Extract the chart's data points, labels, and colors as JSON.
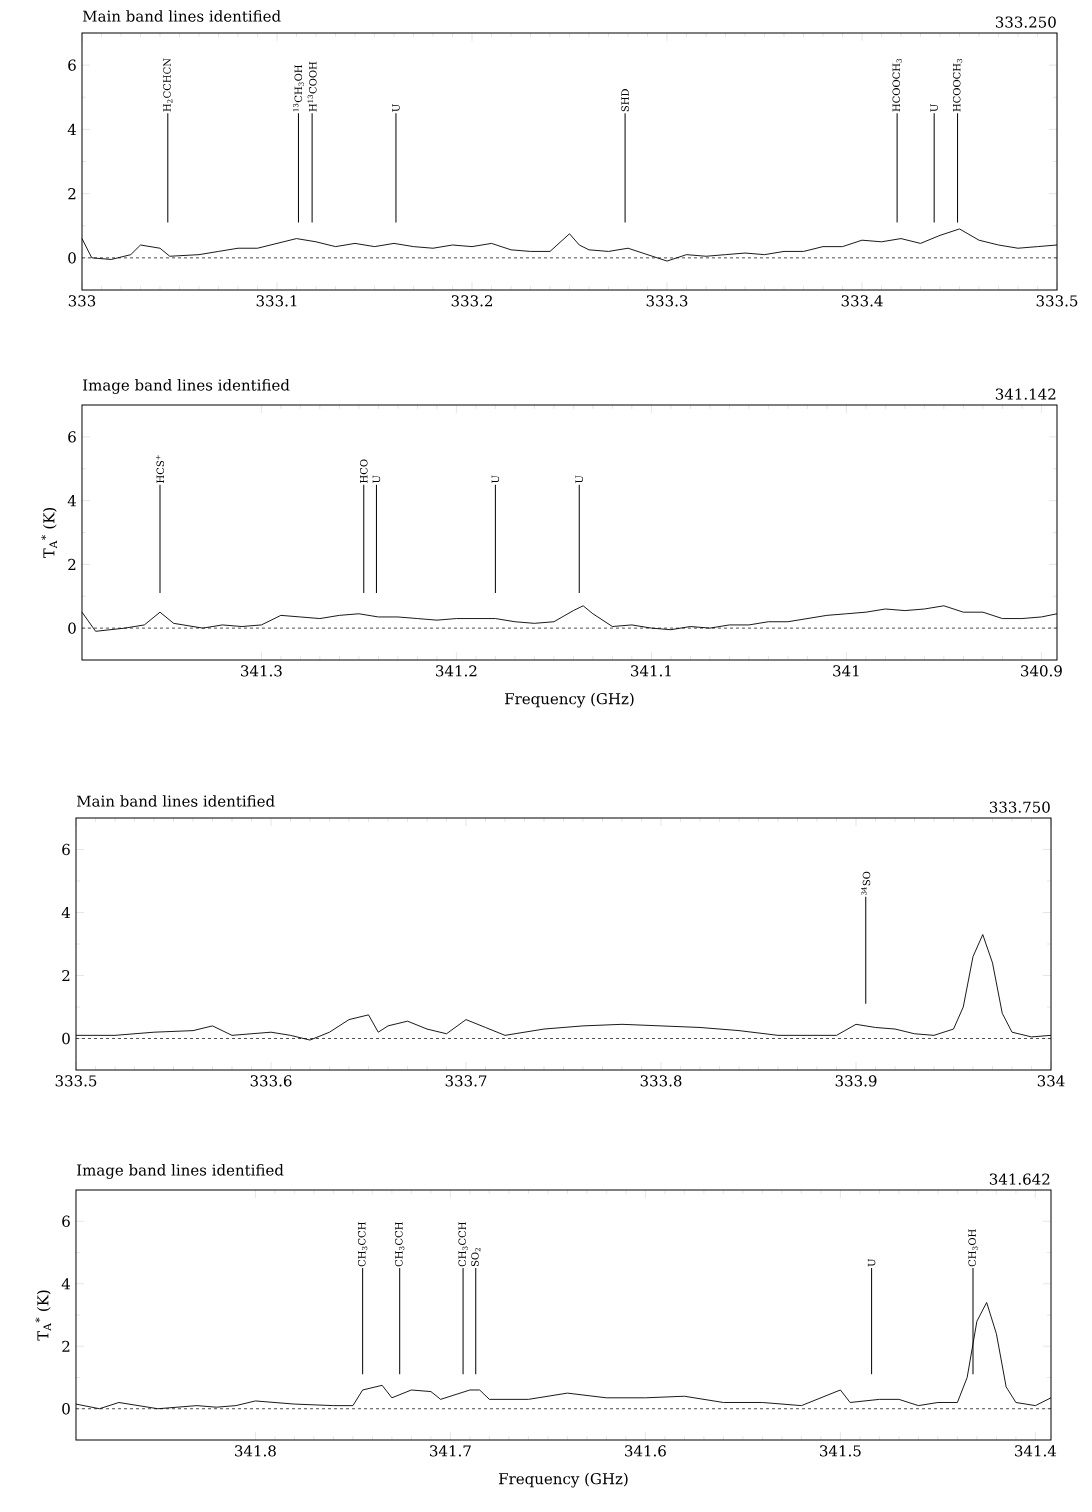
{
  "chart_data": [
    {
      "type": "line",
      "title": "Main band lines identified",
      "annotations": [
        "333.250"
      ],
      "xlim": [
        333,
        333.5
      ],
      "xticks": [
        333,
        333.1,
        333.2,
        333.3,
        333.4,
        333.5
      ],
      "ylim": [
        -1,
        7
      ],
      "yticks": [
        0,
        2,
        4,
        6
      ],
      "ref_lines": [
        {
          "axis": "y",
          "value": 0,
          "line_style": "dashed"
        },
        {
          "axis": "x",
          "value": 333.044,
          "label": "H$_{2}$CCHCN"
        },
        {
          "axis": "x",
          "value": 333.111,
          "label": "$^{13}$CH$_{3}$OH"
        },
        {
          "axis": "x",
          "value": 333.118,
          "label": "H$^{13}$COOH"
        },
        {
          "axis": "x",
          "value": 333.161,
          "label": "U"
        },
        {
          "axis": "x",
          "value": 333.2785,
          "label": "SHD"
        },
        {
          "axis": "x",
          "value": 333.418,
          "label": "HCOOCH$_{3}$"
        },
        {
          "axis": "x",
          "value": 333.437,
          "label": "U"
        },
        {
          "axis": "x",
          "value": 333.449,
          "label": "HCOOCH$_{3}$"
        }
      ],
      "x": [
        333.0,
        333.005,
        333.015,
        333.025,
        333.03,
        333.04,
        333.045,
        333.06,
        333.07,
        333.08,
        333.09,
        333.1,
        333.11,
        333.12,
        333.13,
        333.14,
        333.15,
        333.16,
        333.17,
        333.18,
        333.19,
        333.2,
        333.21,
        333.22,
        333.23,
        333.24,
        333.25,
        333.255,
        333.26,
        333.27,
        333.28,
        333.29,
        333.3,
        333.31,
        333.32,
        333.33,
        333.34,
        333.35,
        333.36,
        333.37,
        333.38,
        333.39,
        333.4,
        333.41,
        333.42,
        333.43,
        333.44,
        333.45,
        333.46,
        333.47,
        333.48,
        333.49,
        333.5
      ],
      "series": [
        {
          "color": "#000000",
          "values": [
            0.6,
            0.0,
            -0.05,
            0.1,
            0.4,
            0.3,
            0.05,
            0.1,
            0.2,
            0.3,
            0.3,
            0.45,
            0.6,
            0.5,
            0.35,
            0.45,
            0.35,
            0.45,
            0.35,
            0.3,
            0.4,
            0.35,
            0.45,
            0.25,
            0.2,
            0.2,
            0.75,
            0.4,
            0.25,
            0.2,
            0.3,
            0.1,
            -0.1,
            0.1,
            0.05,
            0.1,
            0.15,
            0.1,
            0.2,
            0.2,
            0.35,
            0.35,
            0.55,
            0.5,
            0.6,
            0.45,
            0.7,
            0.9,
            0.55,
            0.4,
            0.3,
            0.35,
            0.4
          ]
        }
      ]
    },
    {
      "type": "line",
      "title": "Image band lines identified",
      "xlabel": "Frequency (GHz)",
      "ylabel": "T$_{A}$$^{*}$ (K)",
      "annotations": [
        "341.142"
      ],
      "xlim": [
        341.392,
        340.892
      ],
      "xticks": [
        341.3,
        341.2,
        341.1,
        341,
        340.9
      ],
      "ylim": [
        -1,
        7
      ],
      "yticks": [
        0,
        2,
        4,
        6
      ],
      "ref_lines": [
        {
          "axis": "y",
          "value": 0,
          "line_style": "dashed"
        },
        {
          "axis": "x",
          "value": 341.352,
          "label": "HCS$^{+}$"
        },
        {
          "axis": "x",
          "value": 341.2475,
          "label": "HCO"
        },
        {
          "axis": "x",
          "value": 341.241,
          "label": "U"
        },
        {
          "axis": "x",
          "value": 341.18,
          "label": "U"
        },
        {
          "axis": "x",
          "value": 341.137,
          "label": "U"
        }
      ],
      "x": [
        341.392,
        341.385,
        341.37,
        341.36,
        341.352,
        341.345,
        341.33,
        341.32,
        341.31,
        341.3,
        341.29,
        341.28,
        341.27,
        341.26,
        341.25,
        341.24,
        341.23,
        341.22,
        341.21,
        341.2,
        341.19,
        341.18,
        341.17,
        341.16,
        341.15,
        341.14,
        341.135,
        341.13,
        341.12,
        341.11,
        341.1,
        341.09,
        341.08,
        341.07,
        341.06,
        341.05,
        341.04,
        341.03,
        341.02,
        341.01,
        341.0,
        340.99,
        340.98,
        340.97,
        340.96,
        340.95,
        340.94,
        340.93,
        340.92,
        340.91,
        340.9,
        340.892
      ],
      "series": [
        {
          "color": "#000000",
          "values": [
            0.5,
            -0.1,
            0.0,
            0.1,
            0.5,
            0.15,
            0.0,
            0.1,
            0.05,
            0.1,
            0.4,
            0.35,
            0.3,
            0.4,
            0.45,
            0.35,
            0.35,
            0.3,
            0.25,
            0.3,
            0.3,
            0.3,
            0.2,
            0.15,
            0.2,
            0.55,
            0.7,
            0.45,
            0.05,
            0.1,
            0.0,
            -0.05,
            0.05,
            0.0,
            0.1,
            0.1,
            0.2,
            0.2,
            0.3,
            0.4,
            0.45,
            0.5,
            0.6,
            0.55,
            0.6,
            0.7,
            0.5,
            0.5,
            0.3,
            0.3,
            0.35,
            0.45
          ]
        }
      ]
    },
    {
      "type": "line",
      "title": "Main band lines identified",
      "annotations": [
        "333.750"
      ],
      "xlim": [
        333.5,
        334
      ],
      "xticks": [
        333.5,
        333.6,
        333.7,
        333.8,
        333.9,
        334
      ],
      "ylim": [
        -1,
        7
      ],
      "yticks": [
        0,
        2,
        4,
        6
      ],
      "ref_lines": [
        {
          "axis": "y",
          "value": 0,
          "line_style": "dashed"
        },
        {
          "axis": "x",
          "value": 333.905,
          "label": "$^{34}$SO"
        }
      ],
      "x": [
        333.5,
        333.52,
        333.54,
        333.56,
        333.57,
        333.58,
        333.6,
        333.61,
        333.62,
        333.63,
        333.64,
        333.65,
        333.655,
        333.66,
        333.67,
        333.68,
        333.69,
        333.7,
        333.71,
        333.72,
        333.74,
        333.76,
        333.78,
        333.8,
        333.82,
        333.84,
        333.86,
        333.88,
        333.89,
        333.9,
        333.91,
        333.92,
        333.93,
        333.94,
        333.95,
        333.955,
        333.96,
        333.965,
        333.97,
        333.975,
        333.98,
        333.99,
        334.0
      ],
      "series": [
        {
          "color": "#000000",
          "values": [
            0.1,
            0.1,
            0.2,
            0.25,
            0.4,
            0.1,
            0.2,
            0.1,
            -0.05,
            0.2,
            0.6,
            0.75,
            0.2,
            0.4,
            0.55,
            0.3,
            0.15,
            0.6,
            0.35,
            0.1,
            0.3,
            0.4,
            0.45,
            0.4,
            0.35,
            0.25,
            0.1,
            0.1,
            0.1,
            0.45,
            0.35,
            0.3,
            0.15,
            0.1,
            0.3,
            1.0,
            2.6,
            3.3,
            2.4,
            0.8,
            0.2,
            0.05,
            0.1
          ]
        }
      ]
    },
    {
      "type": "line",
      "title": "Image band lines identified",
      "xlabel": "Frequency (GHz)",
      "ylabel": "T$_{A}$$^{*}$ (K)",
      "annotations": [
        "341.642"
      ],
      "xlim": [
        341.892,
        341.392
      ],
      "xticks": [
        341.8,
        341.7,
        341.6,
        341.5,
        341.4
      ],
      "ylim": [
        -1,
        7
      ],
      "yticks": [
        0,
        2,
        4,
        6
      ],
      "ref_lines": [
        {
          "axis": "y",
          "value": 0,
          "line_style": "dashed"
        },
        {
          "axis": "x",
          "value": 341.745,
          "label": "CH$_{3}$CCH"
        },
        {
          "axis": "x",
          "value": 341.726,
          "label": "CH$_{3}$CCH"
        },
        {
          "axis": "x",
          "value": 341.6935,
          "label": "CH$_{3}$CCH"
        },
        {
          "axis": "x",
          "value": 341.687,
          "label": "SO$_{2}$"
        },
        {
          "axis": "x",
          "value": 341.484,
          "label": "U"
        },
        {
          "axis": "x",
          "value": 341.432,
          "label": "CH$_{3}$OH"
        }
      ],
      "x": [
        341.892,
        341.88,
        341.87,
        341.86,
        341.85,
        341.83,
        341.82,
        341.81,
        341.8,
        341.78,
        341.76,
        341.75,
        341.745,
        341.735,
        341.73,
        341.72,
        341.71,
        341.705,
        341.69,
        341.685,
        341.68,
        341.66,
        341.64,
        341.62,
        341.6,
        341.58,
        341.56,
        341.54,
        341.52,
        341.5,
        341.495,
        341.48,
        341.47,
        341.46,
        341.45,
        341.44,
        341.435,
        341.43,
        341.425,
        341.42,
        341.415,
        341.41,
        341.4,
        341.392
      ],
      "series": [
        {
          "color": "#000000",
          "values": [
            0.15,
            0.0,
            0.2,
            0.1,
            0.0,
            0.1,
            0.05,
            0.1,
            0.25,
            0.15,
            0.1,
            0.1,
            0.6,
            0.75,
            0.35,
            0.6,
            0.55,
            0.3,
            0.6,
            0.6,
            0.3,
            0.3,
            0.5,
            0.35,
            0.35,
            0.4,
            0.2,
            0.2,
            0.1,
            0.6,
            0.2,
            0.3,
            0.3,
            0.1,
            0.2,
            0.2,
            1.0,
            2.8,
            3.4,
            2.4,
            0.7,
            0.2,
            0.1,
            0.35
          ]
        }
      ]
    }
  ]
}
